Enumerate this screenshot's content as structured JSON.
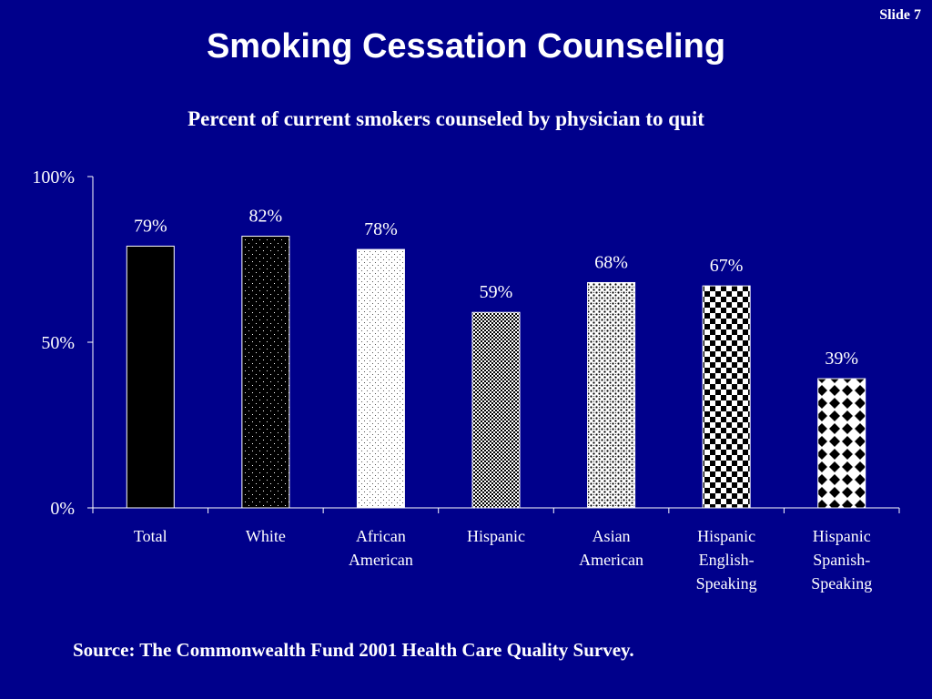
{
  "slide_label": "Slide 7",
  "title": "Smoking Cessation Counseling",
  "chart_data": {
    "type": "bar",
    "title": "Percent of current smokers counseled by physician to quit",
    "categories": [
      [
        "Total"
      ],
      [
        "White"
      ],
      [
        "African",
        "American"
      ],
      [
        "Hispanic"
      ],
      [
        "Asian",
        "American"
      ],
      [
        "Hispanic",
        "English-",
        "Speaking"
      ],
      [
        "Hispanic",
        "Spanish-",
        "Speaking"
      ]
    ],
    "values": [
      79,
      82,
      78,
      59,
      68,
      67,
      39
    ],
    "data_labels": [
      "79%",
      "82%",
      "78%",
      "59%",
      "68%",
      "67%",
      "39%"
    ],
    "ylim": [
      0,
      100
    ],
    "yticks": [
      0,
      50,
      100
    ],
    "ytick_labels": [
      "0%",
      "50%",
      "100%"
    ],
    "grid": false,
    "bar_fills": [
      "solid-black",
      "black-white-dots",
      "white-gray-dots",
      "checker-fine",
      "speckle",
      "checker-large",
      "diamond"
    ]
  },
  "source": "Source: The Commonwealth Fund 2001 Health Care Quality Survey."
}
